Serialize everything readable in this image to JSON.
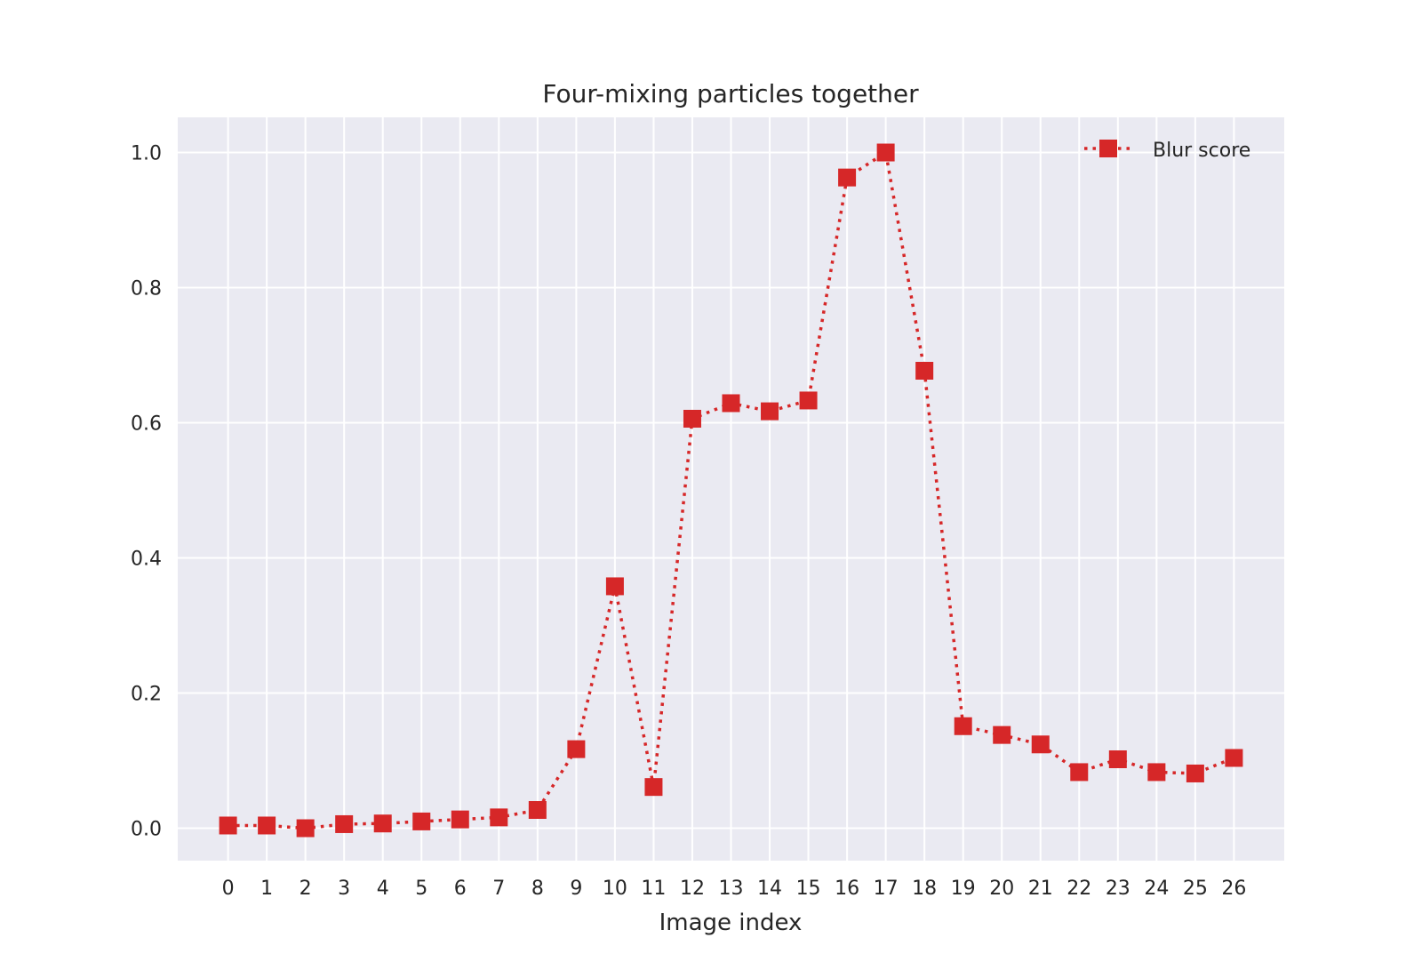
{
  "chart_data": {
    "type": "line",
    "title": "Four-mixing particles together",
    "xlabel": "Image index",
    "ylabel": "",
    "x": [
      0,
      1,
      2,
      3,
      4,
      5,
      6,
      7,
      8,
      9,
      10,
      11,
      12,
      13,
      14,
      15,
      16,
      17,
      18,
      19,
      20,
      21,
      22,
      23,
      24,
      25,
      26
    ],
    "xticks": [
      "0",
      "1",
      "2",
      "3",
      "4",
      "5",
      "6",
      "7",
      "8",
      "9",
      "10",
      "11",
      "12",
      "13",
      "14",
      "15",
      "16",
      "17",
      "18",
      "19",
      "20",
      "21",
      "22",
      "23",
      "24",
      "25",
      "26"
    ],
    "yticks": [
      "0.0",
      "0.2",
      "0.4",
      "0.6",
      "0.8",
      "1.0"
    ],
    "ytick_values": [
      0.0,
      0.2,
      0.4,
      0.6,
      0.8,
      1.0
    ],
    "xlim": [
      -1.3,
      27.3
    ],
    "ylim": [
      -0.048,
      1.052
    ],
    "grid": true,
    "legend_position": "top-right",
    "series": [
      {
        "name": "Blur score",
        "color": "#d62728",
        "linestyle": "dotted",
        "marker": "square",
        "values": [
          0.004,
          0.004,
          0.0,
          0.006,
          0.007,
          0.01,
          0.013,
          0.016,
          0.027,
          0.117,
          0.358,
          0.061,
          0.606,
          0.629,
          0.617,
          0.633,
          0.963,
          1.0,
          0.677,
          0.151,
          0.138,
          0.124,
          0.083,
          0.102,
          0.083,
          0.081,
          0.104
        ]
      }
    ]
  }
}
